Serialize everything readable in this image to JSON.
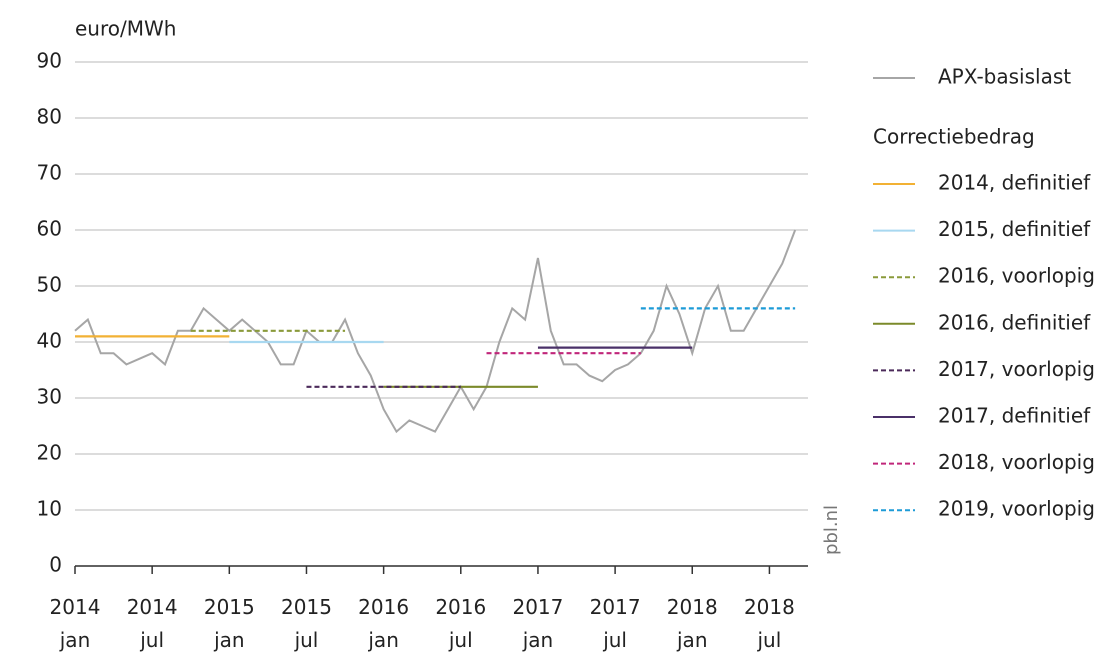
{
  "chart_data": {
    "type": "line",
    "y_label": "euro/MWh",
    "watermark": "pbl.nl",
    "legend_title": "Correctiebedrag",
    "ylim": [
      0,
      90
    ],
    "yticks": [
      0,
      10,
      20,
      30,
      40,
      50,
      60,
      70,
      80,
      90
    ],
    "xlim": [
      "2014-01",
      "2018-10"
    ],
    "xticks": [
      {
        "value": "2014-01",
        "label": "2014 jan"
      },
      {
        "value": "2014-07",
        "label": "2014 jul"
      },
      {
        "value": "2015-01",
        "label": "2015 jan"
      },
      {
        "value": "2015-07",
        "label": "2015 jul"
      },
      {
        "value": "2016-01",
        "label": "2016 jan"
      },
      {
        "value": "2016-07",
        "label": "2016 jul"
      },
      {
        "value": "2017-01",
        "label": "2017 jan"
      },
      {
        "value": "2017-07",
        "label": "2017 jul"
      },
      {
        "value": "2018-01",
        "label": "2018 jan"
      },
      {
        "value": "2018-07",
        "label": "2018 jul"
      }
    ],
    "grid": true,
    "series": [
      {
        "name": "APX-basislast",
        "color": "#a6a6a6",
        "dash": false,
        "x": [
          "2014-01",
          "2014-02",
          "2014-03",
          "2014-04",
          "2014-05",
          "2014-06",
          "2014-07",
          "2014-08",
          "2014-09",
          "2014-10",
          "2014-11",
          "2014-12",
          "2015-01",
          "2015-02",
          "2015-03",
          "2015-04",
          "2015-05",
          "2015-06",
          "2015-07",
          "2015-08",
          "2015-09",
          "2015-10",
          "2015-11",
          "2015-12",
          "2016-01",
          "2016-02",
          "2016-03",
          "2016-04",
          "2016-05",
          "2016-06",
          "2016-07",
          "2016-08",
          "2016-09",
          "2016-10",
          "2016-11",
          "2016-12",
          "2017-01",
          "2017-02",
          "2017-03",
          "2017-04",
          "2017-05",
          "2017-06",
          "2017-07",
          "2017-08",
          "2017-09",
          "2017-10",
          "2017-11",
          "2017-12",
          "2018-01",
          "2018-02",
          "2018-03",
          "2018-04",
          "2018-05",
          "2018-06",
          "2018-07",
          "2018-08",
          "2018-09"
        ],
        "values": [
          42,
          44,
          38,
          38,
          36,
          37,
          38,
          36,
          42,
          42,
          46,
          44,
          42,
          44,
          42,
          40,
          36,
          36,
          42,
          40,
          40,
          44,
          38,
          34,
          28,
          24,
          26,
          25,
          24,
          28,
          32,
          28,
          32,
          40,
          46,
          44,
          55,
          42,
          36,
          36,
          34,
          33,
          35,
          36,
          38,
          42,
          50,
          45,
          38,
          46,
          50,
          42,
          42,
          46,
          50,
          54,
          60
        ]
      },
      {
        "name": "2014, definitief",
        "color": "#f2b134",
        "dash": false,
        "x": [
          "2014-01",
          "2015-01"
        ],
        "values": [
          41,
          41
        ]
      },
      {
        "name": "2015, definitief",
        "color": "#a8d8f0",
        "dash": false,
        "x": [
          "2015-01",
          "2016-01"
        ],
        "values": [
          40,
          40
        ]
      },
      {
        "name": "2016, voorlopig",
        "color": "#8a9a3a",
        "dash": true,
        "x": [
          "2014-10",
          "2015-10"
        ],
        "values": [
          42,
          42
        ]
      },
      {
        "name": "2016, definitief",
        "color": "#7b8a2a",
        "dash": false,
        "x": [
          "2016-01",
          "2017-01"
        ],
        "values": [
          32,
          32
        ]
      },
      {
        "name": "2017, voorlopig",
        "color": "#4b2a5a",
        "dash": true,
        "x": [
          "2015-07",
          "2016-07"
        ],
        "values": [
          32,
          32
        ]
      },
      {
        "name": "2017, definitief",
        "color": "#4a3068",
        "dash": false,
        "x": [
          "2017-01",
          "2018-01"
        ],
        "values": [
          39,
          39
        ]
      },
      {
        "name": "2018, voorlopig",
        "color": "#c0267a",
        "dash": true,
        "x": [
          "2016-09",
          "2017-09"
        ],
        "values": [
          38,
          38
        ]
      },
      {
        "name": "2019, voorlopig",
        "color": "#1d9bd7",
        "dash": true,
        "x": [
          "2017-09",
          "2018-09"
        ],
        "values": [
          46,
          46
        ]
      }
    ]
  }
}
